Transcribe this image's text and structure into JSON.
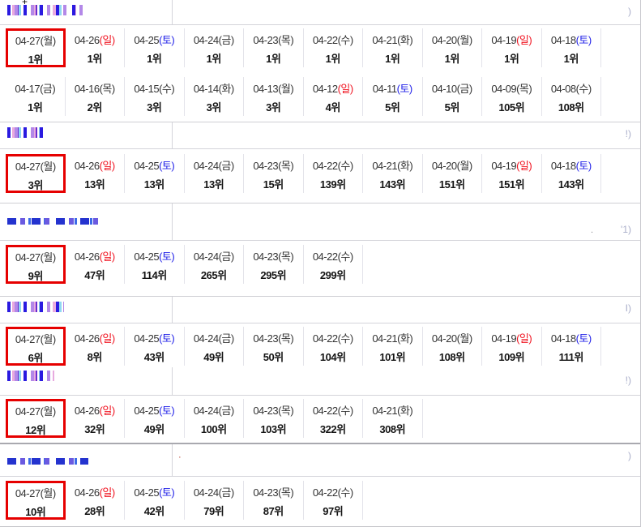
{
  "artifacts": {
    "cursor_glyph": "+"
  },
  "colors": {
    "highlight_border": "#e60000",
    "sunday_text": "#f01421",
    "saturday_text": "#2222e8",
    "redaction_palette": [
      "#2a1ae0",
      "#6a2ad0",
      "#b388e8",
      "#e8aadf",
      "#8fd8f2",
      "#2433cf"
    ]
  },
  "rank_unit": "위",
  "sections": [
    {
      "title_redacted": true,
      "note": ")",
      "cells": [
        {
          "date": "04-27",
          "day": "월",
          "rank": "1위",
          "highlight": true
        },
        {
          "date": "04-26",
          "day": "일",
          "rank": "1위"
        },
        {
          "date": "04-25",
          "day": "토",
          "rank": "1위"
        },
        {
          "date": "04-24",
          "day": "금",
          "rank": "1위"
        },
        {
          "date": "04-23",
          "day": "목",
          "rank": "1위"
        },
        {
          "date": "04-22",
          "day": "수",
          "rank": "1위"
        },
        {
          "date": "04-21",
          "day": "화",
          "rank": "1위"
        },
        {
          "date": "04-20",
          "day": "월",
          "rank": "1위"
        },
        {
          "date": "04-19",
          "day": "일",
          "rank": "1위"
        },
        {
          "date": "04-18",
          "day": "토",
          "rank": "1위"
        },
        {
          "date": "04-17",
          "day": "금",
          "rank": "1위"
        },
        {
          "date": "04-16",
          "day": "목",
          "rank": "2위"
        },
        {
          "date": "04-15",
          "day": "수",
          "rank": "3위"
        },
        {
          "date": "04-14",
          "day": "화",
          "rank": "3위"
        },
        {
          "date": "04-13",
          "day": "월",
          "rank": "3위"
        },
        {
          "date": "04-12",
          "day": "일",
          "rank": "4위"
        },
        {
          "date": "04-11",
          "day": "토",
          "rank": "5위"
        },
        {
          "date": "04-10",
          "day": "금",
          "rank": "5위"
        },
        {
          "date": "04-09",
          "day": "목",
          "rank": "105위"
        },
        {
          "date": "04-08",
          "day": "수",
          "rank": "108위"
        }
      ]
    },
    {
      "title_redacted": true,
      "note": "!)",
      "cells": [
        {
          "date": "04-27",
          "day": "월",
          "rank": "3위",
          "highlight": true
        },
        {
          "date": "04-26",
          "day": "일",
          "rank": "13위"
        },
        {
          "date": "04-25",
          "day": "토",
          "rank": "13위"
        },
        {
          "date": "04-24",
          "day": "금",
          "rank": "13위"
        },
        {
          "date": "04-23",
          "day": "목",
          "rank": "15위"
        },
        {
          "date": "04-22",
          "day": "수",
          "rank": "139위"
        },
        {
          "date": "04-21",
          "day": "화",
          "rank": "143위"
        },
        {
          "date": "04-20",
          "day": "월",
          "rank": "151위"
        },
        {
          "date": "04-19",
          "day": "일",
          "rank": "151위"
        },
        {
          "date": "04-18",
          "day": "토",
          "rank": "143위"
        }
      ]
    },
    {
      "title_redacted": true,
      "note": "'1)",
      "mid_note": ".",
      "cells": [
        {
          "date": "04-27",
          "day": "월",
          "rank": "9위",
          "highlight": true
        },
        {
          "date": "04-26",
          "day": "일",
          "rank": "47위"
        },
        {
          "date": "04-25",
          "day": "토",
          "rank": "114위"
        },
        {
          "date": "04-24",
          "day": "금",
          "rank": "265위"
        },
        {
          "date": "04-23",
          "day": "목",
          "rank": "295위"
        },
        {
          "date": "04-22",
          "day": "수",
          "rank": "299위"
        }
      ]
    },
    {
      "title_redacted": true,
      "note": "I)",
      "cells": [
        {
          "date": "04-27",
          "day": "월",
          "rank": "6위",
          "highlight": true
        },
        {
          "date": "04-26",
          "day": "일",
          "rank": "8위"
        },
        {
          "date": "04-25",
          "day": "토",
          "rank": "43위"
        },
        {
          "date": "04-24",
          "day": "금",
          "rank": "49위"
        },
        {
          "date": "04-23",
          "day": "목",
          "rank": "50위"
        },
        {
          "date": "04-22",
          "day": "수",
          "rank": "104위"
        },
        {
          "date": "04-21",
          "day": "화",
          "rank": "101위"
        },
        {
          "date": "04-20",
          "day": "월",
          "rank": "108위"
        },
        {
          "date": "04-19",
          "day": "일",
          "rank": "109위"
        },
        {
          "date": "04-18",
          "day": "토",
          "rank": "111위"
        }
      ]
    },
    {
      "title_redacted": true,
      "note": "!)",
      "cells": [
        {
          "date": "04-27",
          "day": "월",
          "rank": "12위",
          "highlight": true
        },
        {
          "date": "04-26",
          "day": "일",
          "rank": "32위"
        },
        {
          "date": "04-25",
          "day": "토",
          "rank": "49위"
        },
        {
          "date": "04-24",
          "day": "금",
          "rank": "100위"
        },
        {
          "date": "04-23",
          "day": "목",
          "rank": "103위"
        },
        {
          "date": "04-22",
          "day": "수",
          "rank": "322위"
        },
        {
          "date": "04-21",
          "day": "화",
          "rank": "308위"
        }
      ]
    },
    {
      "title_redacted": true,
      "note": ")",
      "mid_note": "·",
      "cells": [
        {
          "date": "04-27",
          "day": "월",
          "rank": "10위",
          "highlight": true
        },
        {
          "date": "04-26",
          "day": "일",
          "rank": "28위"
        },
        {
          "date": "04-25",
          "day": "토",
          "rank": "42위"
        },
        {
          "date": "04-24",
          "day": "금",
          "rank": "79위"
        },
        {
          "date": "04-23",
          "day": "목",
          "rank": "87위"
        },
        {
          "date": "04-22",
          "day": "수",
          "rank": "97위"
        }
      ]
    }
  ]
}
